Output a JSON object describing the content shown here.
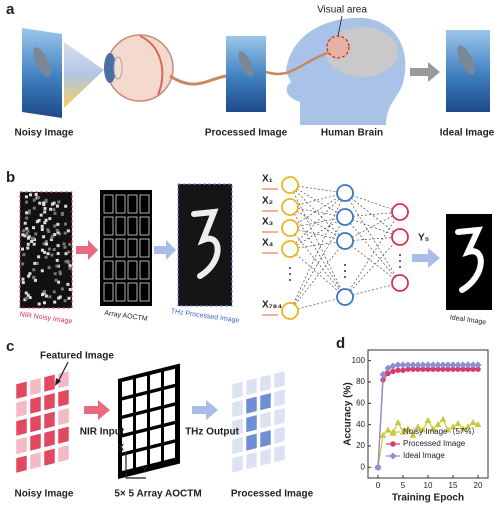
{
  "panels": {
    "a": {
      "label": "a",
      "visual_area": "Visual area",
      "captions": [
        "Noisy Image",
        "Processed Image",
        "Human Brain",
        "Ideal Image"
      ]
    },
    "b": {
      "label": "b",
      "nir": "NIR Noisy Image",
      "array": "Array AOCTM",
      "thz": "THz Processed Image",
      "inputs": [
        "X₁",
        "X₂",
        "X₃",
        "X₄",
        "X₇₈₄"
      ],
      "output": "Y₅",
      "ideal": "Ideal Image"
    },
    "c": {
      "label": "c",
      "featured": "Featured Image",
      "nir_input": "NIR Input",
      "thz_output": "THz Output",
      "axis_x": "X",
      "axis_y": "Y",
      "captions": [
        "Noisy Image",
        "5× 5 Array AOCTM",
        "Processed Image"
      ]
    },
    "d": {
      "label": "d"
    }
  },
  "chart_data": {
    "type": "line",
    "xlabel": "Training Epoch",
    "ylabel": "Accuracy (%)",
    "x": [
      0,
      1,
      2,
      3,
      4,
      5,
      6,
      7,
      8,
      9,
      10,
      11,
      12,
      13,
      14,
      15,
      16,
      17,
      18,
      19,
      20
    ],
    "xlim": [
      -2,
      22
    ],
    "ylim": [
      -10,
      110
    ],
    "xticks": [
      0,
      5,
      10,
      15,
      20
    ],
    "yticks": [
      0,
      20,
      40,
      60,
      80,
      100
    ],
    "legend": "center right",
    "series": [
      {
        "name": "Noisy Image（57%）",
        "color": "#c9c93a",
        "marker": "triangle",
        "values": [
          0,
          30,
          35,
          32,
          42,
          33,
          36,
          30,
          38,
          35,
          44,
          36,
          40,
          45,
          35,
          38,
          41,
          36,
          38,
          42,
          40
        ]
      },
      {
        "name": "Processed Image",
        "color": "#d83a6a",
        "marker": "circle",
        "values": [
          0,
          82,
          88,
          90,
          91,
          91,
          92,
          92,
          92,
          92,
          92,
          92,
          92,
          92,
          92,
          92,
          92,
          92,
          92,
          92,
          92
        ]
      },
      {
        "name": "Ideal Image",
        "color": "#8c8ed8",
        "marker": "diamond",
        "values": [
          0,
          87,
          93,
          95,
          96,
          96,
          96,
          96,
          96,
          96,
          96,
          96,
          96,
          96,
          96,
          96,
          96,
          96,
          96,
          96,
          96
        ]
      }
    ]
  }
}
